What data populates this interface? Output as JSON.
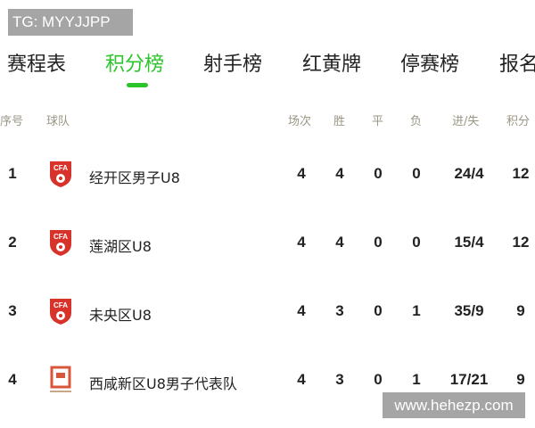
{
  "watermarks": {
    "top": "TG: MYYJJPP",
    "bottom": "www.hehezp.com"
  },
  "tabs": [
    {
      "label": "赛程表"
    },
    {
      "label": "积分榜",
      "active": true
    },
    {
      "label": "射手榜"
    },
    {
      "label": "红黄牌"
    },
    {
      "label": "停赛榜"
    },
    {
      "label": "报名"
    }
  ],
  "accent": "#2bc52b",
  "columns": {
    "rank": "序号",
    "team": "球队",
    "played": "场次",
    "won": "胜",
    "drawn": "平",
    "lost": "负",
    "goals": "进/失",
    "points": "积分"
  },
  "rows": [
    {
      "rank": "1",
      "logo": "cfa-icon",
      "team": "经开区男子U8",
      "played": "4",
      "won": "4",
      "drawn": "0",
      "lost": "0",
      "goals": "24/4",
      "points": "12"
    },
    {
      "rank": "2",
      "logo": "cfa-icon",
      "team": "莲湖区U8",
      "played": "4",
      "won": "4",
      "drawn": "0",
      "lost": "0",
      "goals": "15/4",
      "points": "12"
    },
    {
      "rank": "3",
      "logo": "cfa-icon",
      "team": "未央区U8",
      "played": "4",
      "won": "3",
      "drawn": "0",
      "lost": "1",
      "goals": "35/9",
      "points": "9"
    },
    {
      "rank": "4",
      "logo": "xixian-icon",
      "team": "西咸新区U8男子代表队",
      "played": "4",
      "won": "3",
      "drawn": "0",
      "lost": "1",
      "goals": "17/21",
      "points": "9"
    }
  ]
}
